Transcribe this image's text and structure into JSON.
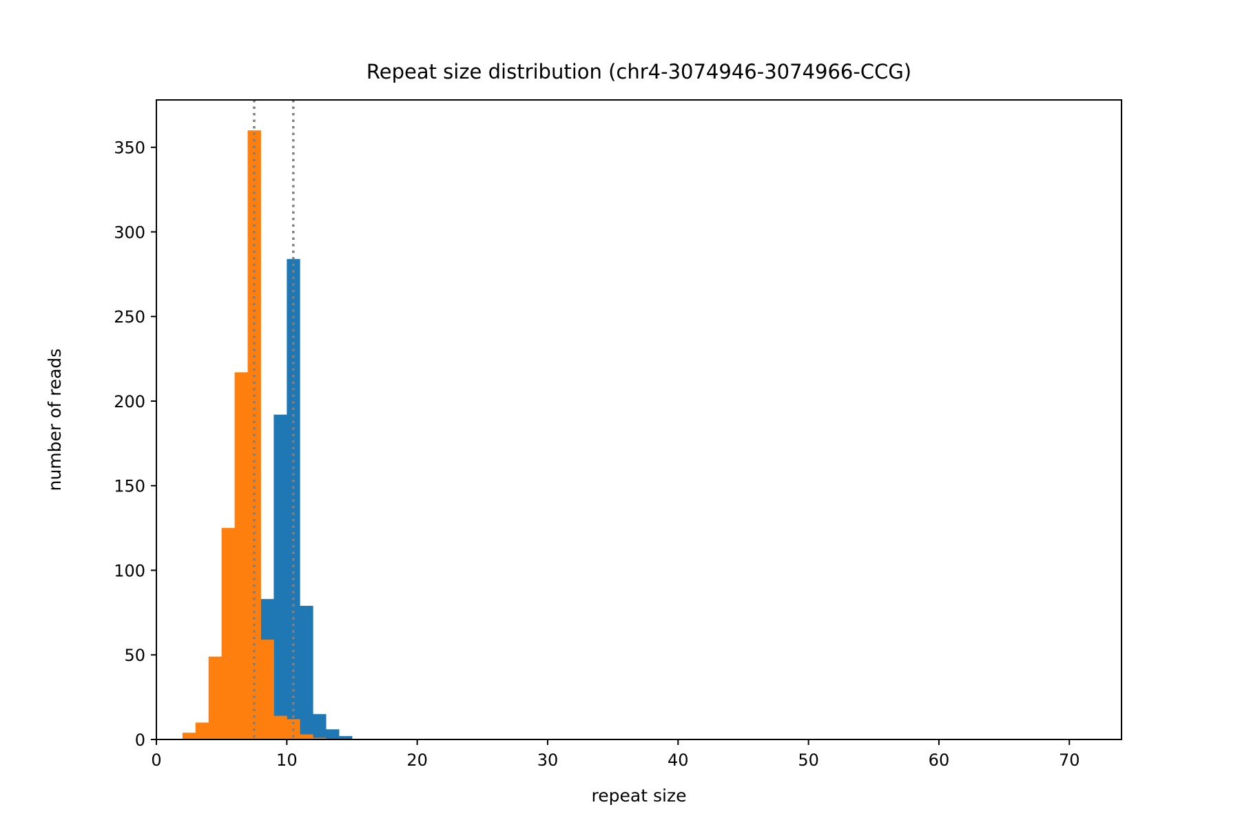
{
  "chart_data": {
    "type": "bar",
    "title": "Repeat size distribution (chr4-3074946-3074966-CCG)",
    "xlabel": "repeat size",
    "ylabel": "number of reads",
    "xlim": [
      0,
      74
    ],
    "ylim": [
      0,
      378
    ],
    "xticks": [
      0,
      10,
      20,
      30,
      40,
      50,
      60,
      70
    ],
    "yticks": [
      0,
      50,
      100,
      150,
      200,
      250,
      300,
      350
    ],
    "bin_width": 1,
    "grid": false,
    "legend": "none",
    "series": [
      {
        "color": "#1f77b4",
        "bins": [
          {
            "x0": 8,
            "value": 83
          },
          {
            "x0": 9,
            "value": 192
          },
          {
            "x0": 10,
            "value": 284
          },
          {
            "x0": 11,
            "value": 79
          },
          {
            "x0": 12,
            "value": 15
          },
          {
            "x0": 13,
            "value": 6
          },
          {
            "x0": 14,
            "value": 2
          }
        ]
      },
      {
        "color": "#ff7f0e",
        "bins": [
          {
            "x0": 2,
            "value": 4
          },
          {
            "x0": 3,
            "value": 10
          },
          {
            "x0": 4,
            "value": 49
          },
          {
            "x0": 5,
            "value": 125
          },
          {
            "x0": 6,
            "value": 217
          },
          {
            "x0": 7,
            "value": 360
          },
          {
            "x0": 8,
            "value": 59
          },
          {
            "x0": 9,
            "value": 14
          },
          {
            "x0": 10,
            "value": 12
          },
          {
            "x0": 11,
            "value": 3
          },
          {
            "x0": 12,
            "value": 1
          }
        ]
      }
    ],
    "reference_lines": [
      {
        "x": 7.5,
        "color": "#808080",
        "style": "dotted"
      },
      {
        "x": 10.5,
        "color": "#808080",
        "style": "dotted"
      }
    ]
  }
}
